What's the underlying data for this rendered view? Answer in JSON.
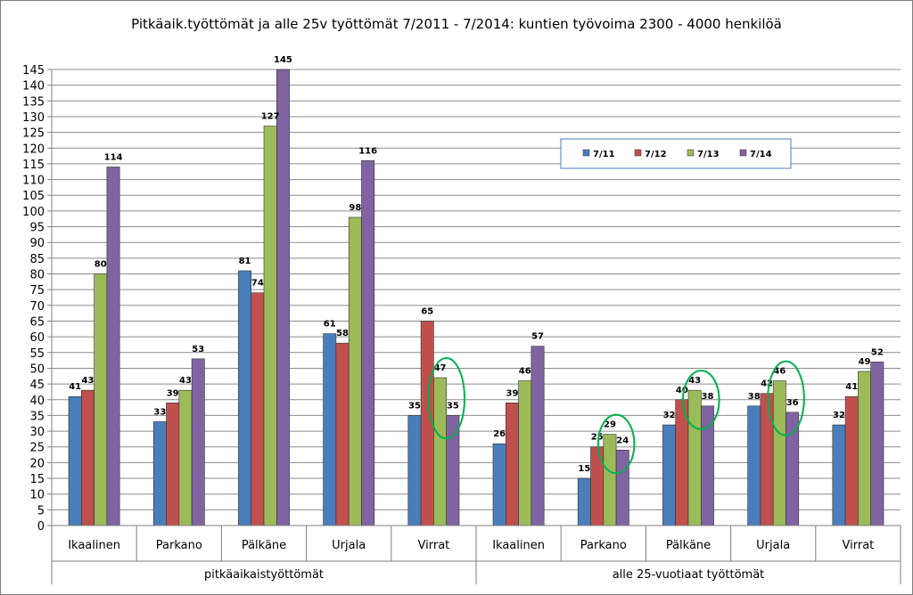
{
  "chart_data": {
    "type": "bar",
    "title": "Pitkäaik.työttömät ja alle 25v työttömät 7/2011 - 7/2014: kuntien työvoima 2300 - 4000 henkilöä",
    "groups": [
      {
        "label": "pitkäaikaistyöttömät",
        "categories": [
          "Ikaalinen",
          "Parkano",
          "Pälkäne",
          "Urjala",
          "Virrat"
        ]
      },
      {
        "label": "alle 25-vuotiaat työttömät",
        "categories": [
          "Ikaalinen",
          "Parkano",
          "Pälkäne",
          "Urjala",
          "Virrat"
        ]
      }
    ],
    "categories": [
      "Ikaalinen",
      "Parkano",
      "Pälkäne",
      "Urjala",
      "Virrat",
      "Ikaalinen",
      "Parkano",
      "Pälkäne",
      "Urjala",
      "Virrat"
    ],
    "series": [
      {
        "name": "7/11",
        "color": "#4a7ebb",
        "values": [
          41,
          33,
          81,
          61,
          35,
          26,
          15,
          32,
          38,
          32
        ]
      },
      {
        "name": "7/12",
        "color": "#c0504d",
        "values": [
          43,
          39,
          74,
          58,
          65,
          39,
          25,
          40,
          42,
          41
        ]
      },
      {
        "name": "7/13",
        "color": "#9bbb59",
        "values": [
          80,
          43,
          127,
          98,
          47,
          46,
          29,
          43,
          46,
          49
        ]
      },
      {
        "name": "7/14",
        "color": "#8064a2",
        "values": [
          114,
          53,
          145,
          116,
          35,
          57,
          24,
          38,
          36,
          52
        ]
      }
    ],
    "ylim": [
      0,
      145
    ],
    "ytick_step": 5,
    "grid": true,
    "legend_position": "top-right",
    "highlight_circles": [
      {
        "category_index": 4,
        "series_from": 2,
        "series_to": 3,
        "color": "#00b050"
      },
      {
        "category_index": 6,
        "series_from": 2,
        "series_to": 3,
        "color": "#00b050"
      },
      {
        "category_index": 7,
        "series_from": 2,
        "series_to": 3,
        "color": "#00b050"
      },
      {
        "category_index": 8,
        "series_from": 2,
        "series_to": 3,
        "color": "#00b050"
      }
    ]
  }
}
